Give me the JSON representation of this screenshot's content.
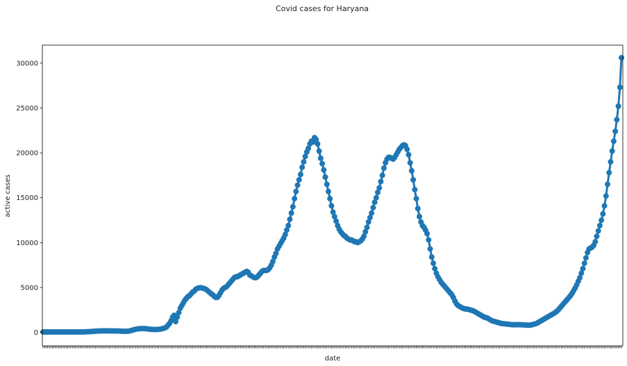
{
  "chart_data": {
    "type": "line",
    "title": "Covid cases for Haryana",
    "xlabel": "date",
    "ylabel": "active cases",
    "ylim": [
      -1500,
      32000
    ],
    "yticks": [
      0,
      5000,
      10000,
      15000,
      20000,
      25000,
      30000
    ],
    "grid": false,
    "legend": "none",
    "x_tick_labels_visible": false,
    "series": [
      {
        "color": "#1f77b4",
        "marker": "circle",
        "n_points": 386,
        "values": [
          50,
          50,
          50,
          50,
          50,
          50,
          50,
          50,
          50,
          50,
          50,
          50,
          50,
          50,
          50,
          50,
          50,
          50,
          50,
          50,
          50,
          50,
          50,
          50,
          50,
          50,
          55,
          60,
          70,
          80,
          90,
          100,
          110,
          120,
          130,
          140,
          150,
          160,
          165,
          170,
          170,
          170,
          170,
          165,
          160,
          160,
          155,
          150,
          150,
          150,
          140,
          130,
          120,
          120,
          120,
          130,
          150,
          200,
          250,
          300,
          350,
          380,
          400,
          420,
          420,
          420,
          420,
          400,
          380,
          360,
          340,
          330,
          320,
          320,
          330,
          340,
          360,
          400,
          450,
          500,
          600,
          800,
          1000,
          1300,
          1700,
          1900,
          1200,
          1700,
          2200,
          2700,
          3000,
          3300,
          3600,
          3800,
          4000,
          4100,
          4300,
          4500,
          4600,
          4800,
          4900,
          4950,
          4980,
          4950,
          4900,
          4850,
          4750,
          4600,
          4450,
          4300,
          4200,
          4000,
          3900,
          3900,
          4100,
          4400,
          4700,
          4900,
          5000,
          5100,
          5300,
          5500,
          5700,
          5900,
          6100,
          6200,
          6200,
          6300,
          6400,
          6500,
          6600,
          6700,
          6800,
          6700,
          6400,
          6300,
          6200,
          6100,
          6100,
          6200,
          6400,
          6600,
          6800,
          6900,
          6900,
          6900,
          7000,
          7200,
          7500,
          7900,
          8400,
          8800,
          9300,
          9600,
          9900,
          10200,
          10500,
          10900,
          11400,
          11900,
          12600,
          13300,
          14000,
          14900,
          15700,
          16400,
          17000,
          17600,
          18400,
          19000,
          19600,
          20100,
          20500,
          21000,
          21300,
          21200,
          21700,
          21500,
          21000,
          20200,
          19400,
          18800,
          18100,
          17300,
          16500,
          15700,
          14900,
          14100,
          13400,
          12900,
          12400,
          11900,
          11500,
          11200,
          11000,
          10800,
          10700,
          10500,
          10400,
          10300,
          10300,
          10200,
          10100,
          10100,
          10000,
          10100,
          10200,
          10400,
          10700,
          11200,
          11700,
          12300,
          12800,
          13300,
          13900,
          14500,
          15000,
          15600,
          16100,
          16800,
          17500,
          18300,
          18900,
          19300,
          19500,
          19500,
          19400,
          19300,
          19500,
          19800,
          20100,
          20400,
          20600,
          20800,
          20900,
          20800,
          20400,
          19800,
          18900,
          18000,
          17000,
          15900,
          14900,
          13800,
          12900,
          12300,
          11900,
          11700,
          11400,
          11000,
          10300,
          9300,
          8400,
          7700,
          7100,
          6600,
          6200,
          5900,
          5600,
          5400,
          5200,
          5000,
          4800,
          4600,
          4400,
          4200,
          3900,
          3500,
          3200,
          3000,
          2900,
          2800,
          2700,
          2650,
          2600,
          2600,
          2550,
          2500,
          2450,
          2400,
          2300,
          2200,
          2100,
          2000,
          1900,
          1800,
          1700,
          1650,
          1600,
          1500,
          1400,
          1300,
          1250,
          1200,
          1150,
          1100,
          1050,
          1000,
          980,
          960,
          940,
          920,
          900,
          880,
          860,
          850,
          850,
          860,
          860,
          860,
          850,
          840,
          830,
          820,
          810,
          800,
          820,
          850,
          900,
          950,
          1000,
          1100,
          1200,
          1300,
          1400,
          1500,
          1600,
          1700,
          1800,
          1900,
          2000,
          2100,
          2200,
          2350,
          2500,
          2700,
          2900,
          3100,
          3300,
          3500,
          3700,
          3900,
          4100,
          4350,
          4650,
          4950,
          5300,
          5700,
          6100,
          6600,
          7100,
          7700,
          8300,
          8900,
          9300,
          9400,
          9500,
          9700,
          10100,
          10700,
          11300,
          11900,
          12500,
          13200,
          14100,
          15200,
          16500,
          17800,
          19000,
          20200,
          21300,
          22400,
          23700,
          25200,
          27300,
          30600
        ]
      }
    ]
  }
}
